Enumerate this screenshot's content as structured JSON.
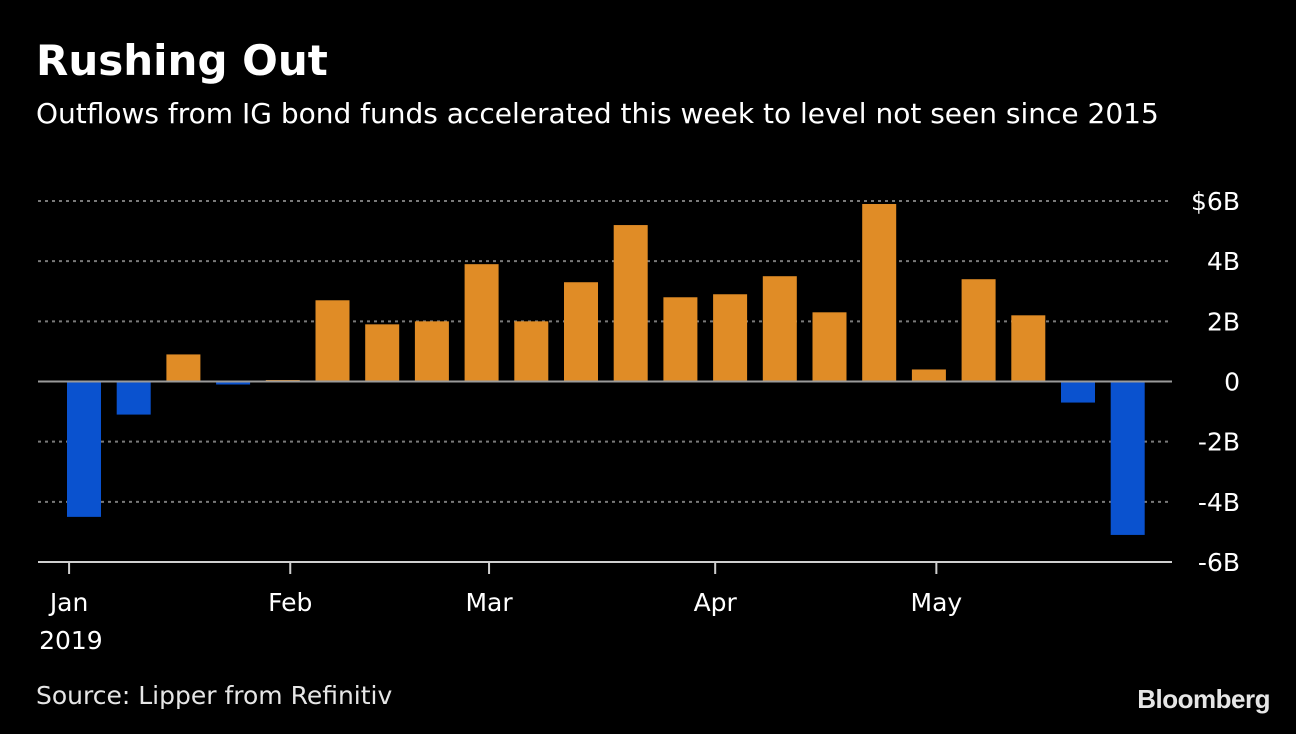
{
  "header": {
    "title": "Rushing Out",
    "subtitle": "Outflows from IG bond funds accelerated this week to level not seen since 2015"
  },
  "footer": {
    "source": "Source: Lipper from Refinitiv",
    "brand": "Bloomberg"
  },
  "colors": {
    "background": "#000000",
    "inflow": "#e08c26",
    "outflow": "#0a52cf"
  },
  "chart_data": {
    "type": "bar",
    "title": "Rushing Out",
    "subtitle": "Outflows from IG bond funds accelerated this week to level not seen since 2015",
    "unit": "billions USD",
    "categories": [
      "2019-01-02",
      "2019-01-09",
      "2019-01-16",
      "2019-01-23",
      "2019-01-30",
      "2019-02-06",
      "2019-02-13",
      "2019-02-20",
      "2019-02-27",
      "2019-03-06",
      "2019-03-13",
      "2019-03-20",
      "2019-03-27",
      "2019-04-03",
      "2019-04-10",
      "2019-04-17",
      "2019-04-24",
      "2019-05-01",
      "2019-05-08",
      "2019-05-15",
      "2019-05-22",
      "2019-05-29"
    ],
    "values": [
      -4.5,
      -1.1,
      0.9,
      -0.1,
      0.05,
      2.7,
      1.9,
      2.0,
      3.9,
      2.0,
      3.3,
      5.2,
      2.8,
      2.9,
      3.5,
      2.3,
      5.9,
      0.4,
      3.4,
      2.2,
      -0.7,
      -5.1
    ],
    "ylim": [
      -6,
      6
    ],
    "y_ticks": [
      {
        "value": 6,
        "label": "$6B"
      },
      {
        "value": 4,
        "label": "4B"
      },
      {
        "value": 2,
        "label": "2B"
      },
      {
        "value": 0,
        "label": "0"
      },
      {
        "value": -2,
        "label": "-2B"
      },
      {
        "value": -4,
        "label": "-4B"
      },
      {
        "value": -6,
        "label": "-6B"
      }
    ],
    "x_ticks": [
      {
        "label": "Jan",
        "date_index": -0.3
      },
      {
        "label": "Feb",
        "date_index": 4.15
      },
      {
        "label": "Mar",
        "date_index": 8.15
      },
      {
        "label": "Apr",
        "date_index": 12.7
      },
      {
        "label": "May",
        "date_index": 17.15
      }
    ],
    "x_year_label": "2019",
    "xlabel": "",
    "ylabel": "",
    "grid": true,
    "legend": "none"
  }
}
